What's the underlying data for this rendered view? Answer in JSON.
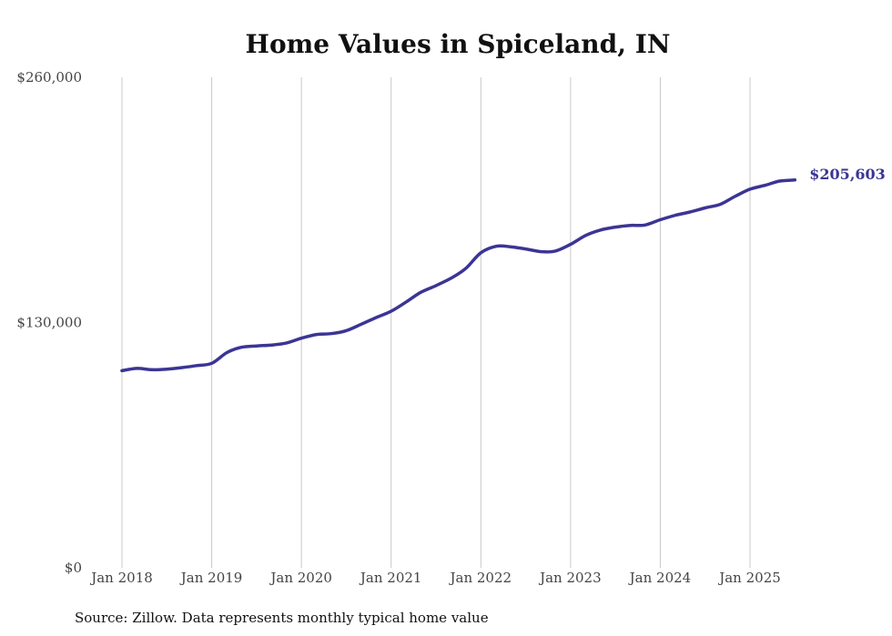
{
  "chart_data": {
    "type": "line",
    "title": "Home Values in Spiceland, IN",
    "source": "Source: Zillow. Data represents monthly typical home value",
    "ylim": [
      0,
      260000
    ],
    "y_ticks": [
      "$0",
      "$130,000",
      "$260,000"
    ],
    "y_tick_values": [
      0,
      130000,
      260000
    ],
    "x_ticks": [
      "Jan 2018",
      "Jan 2019",
      "Jan 2020",
      "Jan 2021",
      "Jan 2022",
      "Jan 2023",
      "Jan 2024",
      "Jan 2025"
    ],
    "x_tick_values": [
      2018,
      2019,
      2020,
      2021,
      2022,
      2023,
      2024,
      2025
    ],
    "grid": "vertical",
    "line_color": "#3b3594",
    "end_label": "$205,603",
    "series": [
      {
        "x": [
          2018.0,
          2018.17,
          2018.33,
          2018.5,
          2018.67,
          2018.83,
          2019.0,
          2019.17,
          2019.33,
          2019.5,
          2019.67,
          2019.83,
          2020.0,
          2020.17,
          2020.33,
          2020.5,
          2020.67,
          2020.83,
          2021.0,
          2021.17,
          2021.33,
          2021.5,
          2021.67,
          2021.83,
          2022.0,
          2022.17,
          2022.33,
          2022.5,
          2022.67,
          2022.83,
          2023.0,
          2023.17,
          2023.33,
          2023.5,
          2023.67,
          2023.83,
          2024.0,
          2024.17,
          2024.33,
          2024.5,
          2024.67,
          2024.83,
          2025.0,
          2025.17,
          2025.33,
          2025.5
        ],
        "y": [
          104500,
          105700,
          105000,
          105300,
          106100,
          107200,
          108400,
          114100,
          116900,
          117600,
          118100,
          119100,
          121700,
          123700,
          124100,
          125700,
          129200,
          132600,
          136000,
          141000,
          146000,
          149600,
          153600,
          158600,
          167000,
          170400,
          170200,
          169000,
          167600,
          167900,
          171500,
          176200,
          179000,
          180600,
          181500,
          181700,
          184500,
          186900,
          188600,
          190800,
          192700,
          196800,
          200700,
          202800,
          205000,
          205603
        ]
      }
    ]
  }
}
